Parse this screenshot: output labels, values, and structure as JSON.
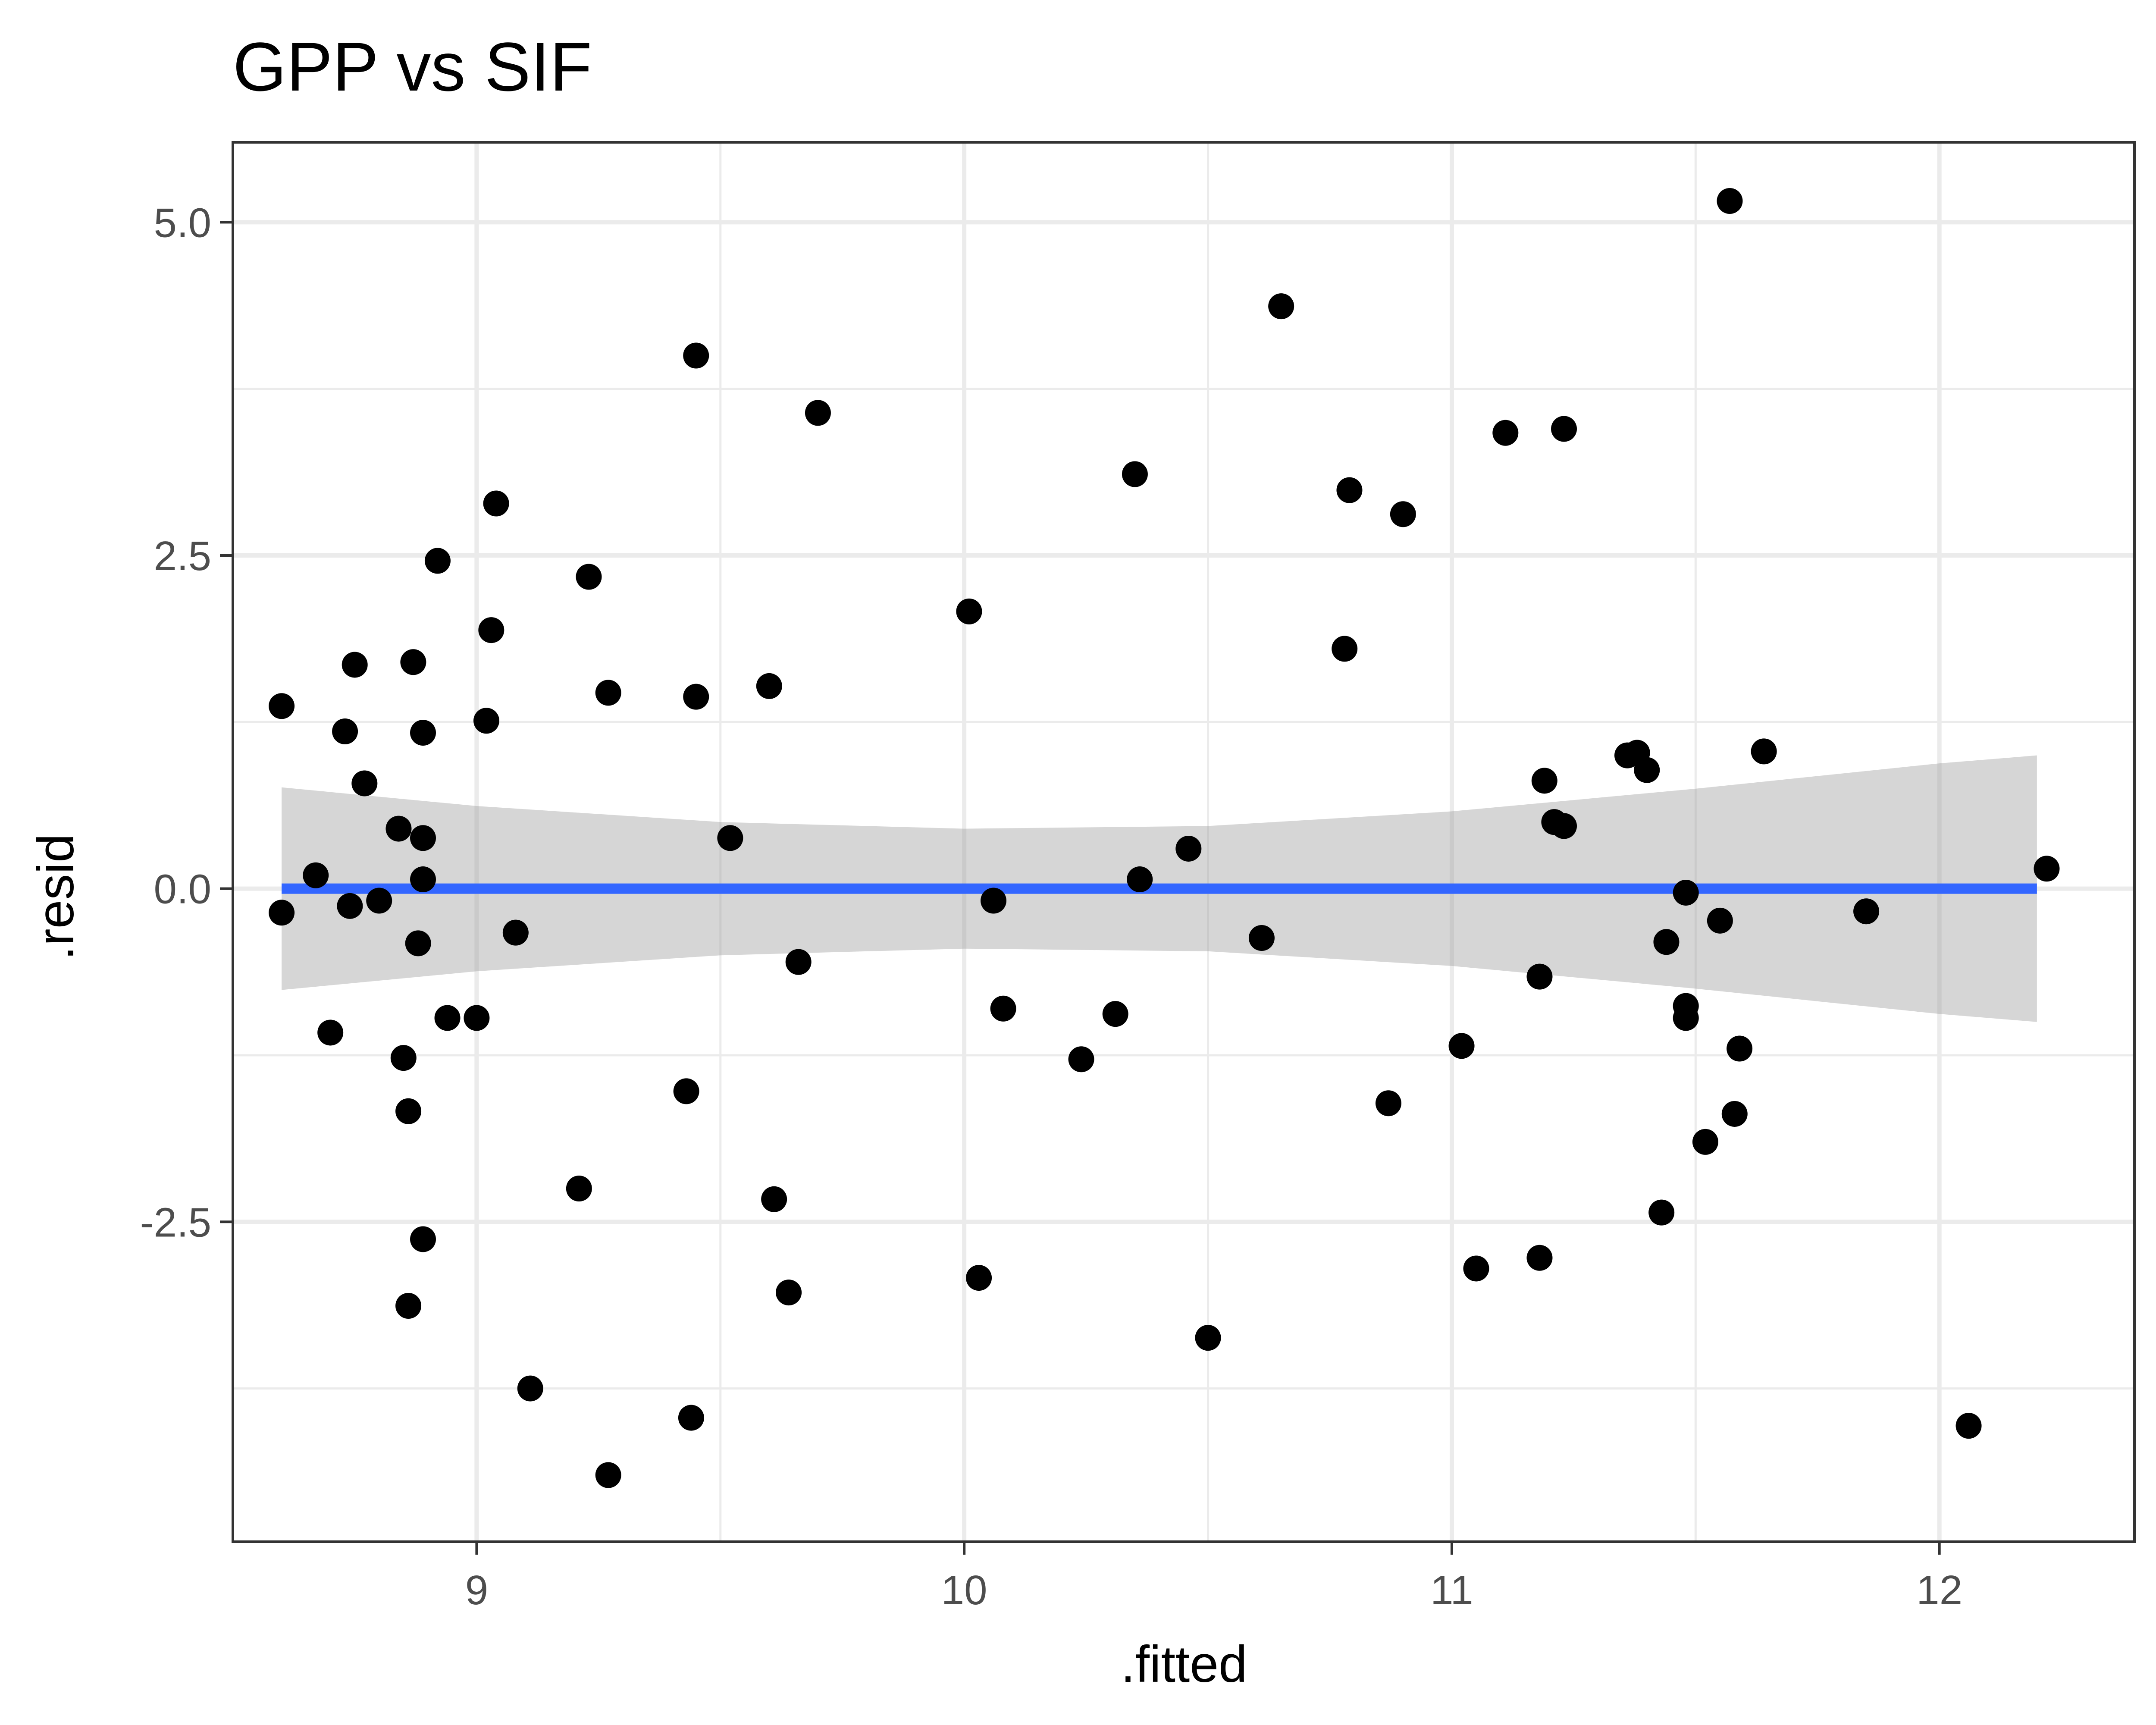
{
  "chart_data": {
    "type": "scatter",
    "title": "GPP vs SIF",
    "xlabel": ".fitted",
    "ylabel": ".resid",
    "xlim": [
      8.5,
      12.4
    ],
    "ylim": [
      -4.9,
      5.6
    ],
    "x_ticks": [
      9,
      10,
      11,
      12
    ],
    "x_tick_labels": [
      "9",
      "10",
      "11",
      "12"
    ],
    "y_ticks": [
      -2.5,
      0.0,
      2.5,
      5.0
    ],
    "y_tick_labels": [
      "-2.5",
      "0.0",
      "2.5",
      "5.0"
    ],
    "grid": true,
    "colors": {
      "points": "#000000",
      "fit_line": "#3366ff",
      "confidence_band": "#999999",
      "panel_border": "#333333",
      "grid": "#ebebeb"
    },
    "fit_line": {
      "x": [
        8.6,
        12.2
      ],
      "y": [
        0.0,
        0.0
      ]
    },
    "confidence_band": {
      "x": [
        8.6,
        9.0,
        9.5,
        10.0,
        10.5,
        11.0,
        11.5,
        12.0,
        12.2
      ],
      "upper": [
        0.76,
        0.62,
        0.5,
        0.45,
        0.47,
        0.58,
        0.75,
        0.94,
        1.0
      ],
      "lower": [
        -0.76,
        -0.62,
        -0.5,
        -0.45,
        -0.47,
        -0.58,
        -0.75,
        -0.94,
        -1.0
      ]
    },
    "points": [
      {
        "x": 8.6,
        "y": 1.37
      },
      {
        "x": 8.6,
        "y": -0.18
      },
      {
        "x": 8.67,
        "y": 0.1
      },
      {
        "x": 8.7,
        "y": -1.08
      },
      {
        "x": 8.73,
        "y": 1.18
      },
      {
        "x": 8.74,
        "y": -0.13
      },
      {
        "x": 8.75,
        "y": 1.68
      },
      {
        "x": 8.77,
        "y": 0.79
      },
      {
        "x": 8.8,
        "y": -0.09
      },
      {
        "x": 8.84,
        "y": 0.45
      },
      {
        "x": 8.85,
        "y": -1.27
      },
      {
        "x": 8.86,
        "y": -1.67
      },
      {
        "x": 8.86,
        "y": -3.13
      },
      {
        "x": 8.87,
        "y": 1.7
      },
      {
        "x": 8.88,
        "y": -0.41
      },
      {
        "x": 8.89,
        "y": 0.38
      },
      {
        "x": 8.89,
        "y": 1.17
      },
      {
        "x": 8.89,
        "y": 0.07
      },
      {
        "x": 8.89,
        "y": -2.63
      },
      {
        "x": 8.92,
        "y": 2.46
      },
      {
        "x": 8.94,
        "y": -0.97
      },
      {
        "x": 9.0,
        "y": -0.97
      },
      {
        "x": 9.02,
        "y": 1.26
      },
      {
        "x": 9.03,
        "y": 1.94
      },
      {
        "x": 9.04,
        "y": 2.89
      },
      {
        "x": 9.08,
        "y": -0.33
      },
      {
        "x": 9.11,
        "y": -3.75
      },
      {
        "x": 9.21,
        "y": -2.25
      },
      {
        "x": 9.23,
        "y": 2.34
      },
      {
        "x": 9.27,
        "y": 1.47
      },
      {
        "x": 9.27,
        "y": -4.4
      },
      {
        "x": 9.43,
        "y": -1.52
      },
      {
        "x": 9.44,
        "y": -3.97
      },
      {
        "x": 9.45,
        "y": 1.44
      },
      {
        "x": 9.45,
        "y": 4.0
      },
      {
        "x": 9.52,
        "y": 0.38
      },
      {
        "x": 9.6,
        "y": 1.52
      },
      {
        "x": 9.61,
        "y": -2.33
      },
      {
        "x": 9.64,
        "y": -3.03
      },
      {
        "x": 9.66,
        "y": -0.55
      },
      {
        "x": 9.7,
        "y": 3.57
      },
      {
        "x": 10.01,
        "y": 2.08
      },
      {
        "x": 10.03,
        "y": -2.92
      },
      {
        "x": 10.06,
        "y": -0.09
      },
      {
        "x": 10.08,
        "y": -0.9
      },
      {
        "x": 10.24,
        "y": -1.28
      },
      {
        "x": 10.31,
        "y": -0.94
      },
      {
        "x": 10.35,
        "y": 3.11
      },
      {
        "x": 10.36,
        "y": 0.07
      },
      {
        "x": 10.46,
        "y": 0.3
      },
      {
        "x": 10.5,
        "y": -3.37
      },
      {
        "x": 10.61,
        "y": -0.37
      },
      {
        "x": 10.65,
        "y": 4.37
      },
      {
        "x": 10.78,
        "y": 1.8
      },
      {
        "x": 10.79,
        "y": 2.99
      },
      {
        "x": 10.87,
        "y": -1.61
      },
      {
        "x": 10.9,
        "y": 2.81
      },
      {
        "x": 11.02,
        "y": -1.18
      },
      {
        "x": 11.05,
        "y": -2.85
      },
      {
        "x": 11.11,
        "y": 3.42
      },
      {
        "x": 11.18,
        "y": -2.77
      },
      {
        "x": 11.18,
        "y": -0.66
      },
      {
        "x": 11.19,
        "y": 0.81
      },
      {
        "x": 11.21,
        "y": 0.5
      },
      {
        "x": 11.23,
        "y": 3.45
      },
      {
        "x": 11.23,
        "y": 0.47
      },
      {
        "x": 11.36,
        "y": 1.0
      },
      {
        "x": 11.38,
        "y": 1.02
      },
      {
        "x": 11.4,
        "y": 0.89
      },
      {
        "x": 11.43,
        "y": -2.43
      },
      {
        "x": 11.44,
        "y": -0.4
      },
      {
        "x": 11.48,
        "y": -0.03
      },
      {
        "x": 11.48,
        "y": -0.88
      },
      {
        "x": 11.48,
        "y": -0.97
      },
      {
        "x": 11.52,
        "y": -1.9
      },
      {
        "x": 11.55,
        "y": -0.24
      },
      {
        "x": 11.57,
        "y": 5.16
      },
      {
        "x": 11.58,
        "y": -1.69
      },
      {
        "x": 11.59,
        "y": -1.2
      },
      {
        "x": 11.64,
        "y": 1.03
      },
      {
        "x": 11.85,
        "y": -0.17
      },
      {
        "x": 12.06,
        "y": -4.03
      },
      {
        "x": 12.22,
        "y": 0.15
      }
    ]
  }
}
